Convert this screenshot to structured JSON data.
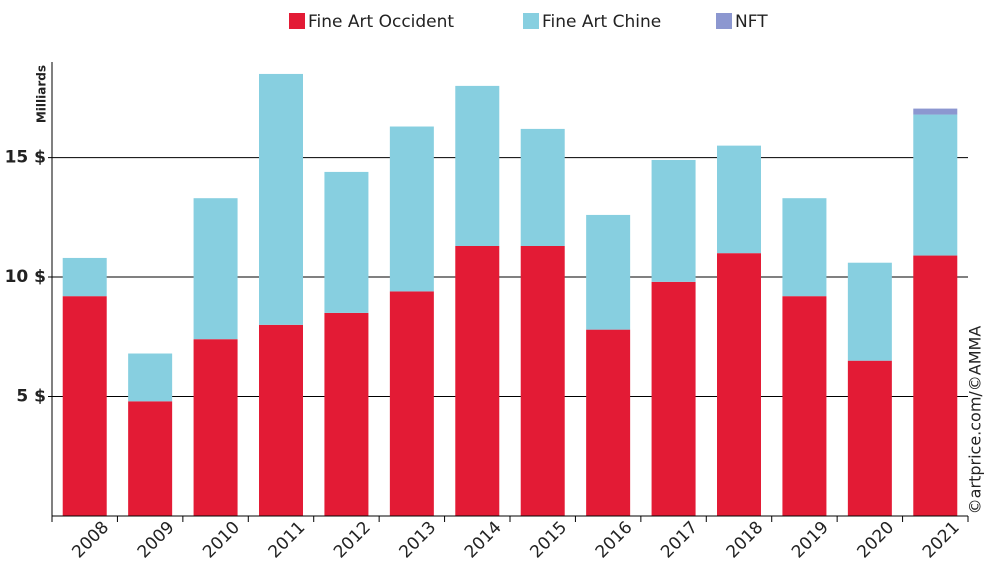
{
  "chart_data": {
    "type": "stacked_bar",
    "y_axis_label": "Milliards",
    "source": "©artprice.com/©AMMA",
    "categories": [
      "2008",
      "2009",
      "2010",
      "2011",
      "2012",
      "2013",
      "2014",
      "2015",
      "2016",
      "2017",
      "2018",
      "2019",
      "2020",
      "2021"
    ],
    "series": [
      {
        "name": "Fine Art Occident",
        "color": "#e31b35",
        "values": [
          9.2,
          4.8,
          7.4,
          8.0,
          8.5,
          9.4,
          11.3,
          11.3,
          7.8,
          9.8,
          11.0,
          9.2,
          6.5,
          10.9
        ]
      },
      {
        "name": "Fine Art Chine",
        "color": "#87cfe0",
        "values": [
          1.6,
          2.0,
          5.9,
          10.5,
          5.9,
          6.9,
          6.7,
          4.9,
          4.8,
          5.1,
          4.5,
          4.1,
          4.1,
          5.9
        ]
      },
      {
        "name": "NFT",
        "color": "#8c97d0",
        "values": [
          0,
          0,
          0,
          0,
          0,
          0,
          0,
          0,
          0,
          0,
          0,
          0,
          0,
          0.25
        ]
      }
    ],
    "ylim": [
      0,
      19
    ],
    "yticks": [
      {
        "value": 5,
        "label": "5 $"
      },
      {
        "value": 10,
        "label": "10 $"
      },
      {
        "value": 15,
        "label": "15 $"
      }
    ],
    "grid": true,
    "legend": "top"
  }
}
